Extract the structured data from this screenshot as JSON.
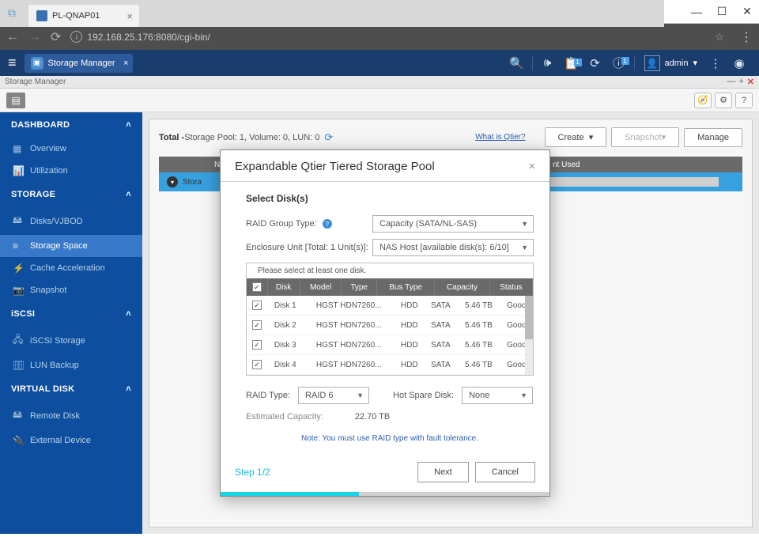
{
  "browser": {
    "tab_title": "PL-QNAP01",
    "url_display": "192.168.25.176:8080/cgi-bin/",
    "url_prefix_muted": ":8080/cgi-bin/"
  },
  "topbar": {
    "app_tab_label": "Storage Manager",
    "user_label": "admin",
    "badge_1": "1",
    "badge_2": "1"
  },
  "app_window": {
    "header_title": "Storage Manager"
  },
  "sidebar": {
    "sections": {
      "dashboard": "DASHBOARD",
      "storage": "STORAGE",
      "iscsi": "iSCSI",
      "virtual": "VIRTUAL DISK"
    },
    "items": {
      "overview": "Overview",
      "utilization": "Utilization",
      "disks": "Disks/VJBOD",
      "storage_space": "Storage Space",
      "cache": "Cache Acceleration",
      "snapshot": "Snapshot",
      "iscsi_storage": "iSCSI Storage",
      "lun_backup": "LUN Backup",
      "remote_disk": "Remote Disk",
      "external_device": "External Device"
    }
  },
  "summary": {
    "total_label": "Total -",
    "detail": " Storage Pool: 1, Volume: 0, LUN: 0",
    "qtier_link": "What is Qtier?",
    "create_btn": "Create",
    "snapshot_btn": "Snapshot",
    "manage_btn": "Manage"
  },
  "pool_table": {
    "col_name": "Name/Alias",
    "col_used": "nt Used",
    "row_label": "Stora"
  },
  "modal": {
    "title": "Expandable Qtier Tiered Storage Pool",
    "select_disks": "Select Disk(s)",
    "raid_group_type_label": "RAID Group Type:",
    "raid_group_type_value": "Capacity (SATA/NL-SAS)",
    "enclosure_label": "Enclosure Unit [Total: 1 Unit(s)]:",
    "enclosure_value": "NAS Host [available disk(s): 6/10]",
    "disk_hint": "Please select at least one disk.",
    "columns": {
      "disk": "Disk",
      "model": "Model",
      "type": "Type",
      "bus": "Bus Type",
      "capacity": "Capacity",
      "status": "Status"
    },
    "disks": [
      {
        "name": "Disk 1",
        "model": "HGST HDN7260...",
        "type": "HDD",
        "bus": "SATA",
        "capacity": "5.46 TB",
        "status": "Good"
      },
      {
        "name": "Disk 2",
        "model": "HGST HDN7260...",
        "type": "HDD",
        "bus": "SATA",
        "capacity": "5.46 TB",
        "status": "Good"
      },
      {
        "name": "Disk 3",
        "model": "HGST HDN7260...",
        "type": "HDD",
        "bus": "SATA",
        "capacity": "5.46 TB",
        "status": "Good"
      },
      {
        "name": "Disk 4",
        "model": "HGST HDN7260...",
        "type": "HDD",
        "bus": "SATA",
        "capacity": "5.46 TB",
        "status": "Good"
      }
    ],
    "raid_type_label": "RAID Type:",
    "raid_type_value": "RAID 6",
    "hot_spare_label": "Hot Spare Disk:",
    "hot_spare_value": "None",
    "est_label": "Estimated Capacity:",
    "est_value": "22.70 TB",
    "note": "Note: You must use RAID type with fault tolerance.",
    "step": "Step 1/2",
    "next_btn": "Next",
    "cancel_btn": "Cancel"
  }
}
